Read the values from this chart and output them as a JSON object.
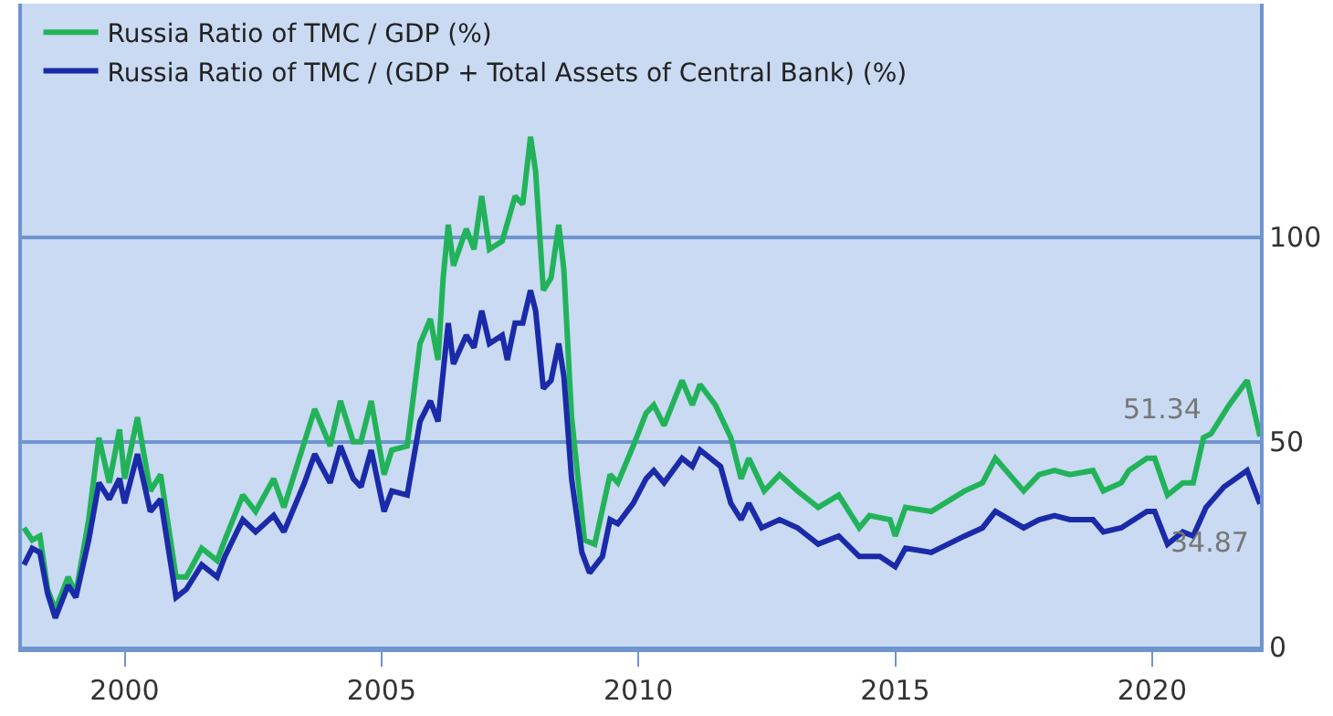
{
  "chart_data": {
    "type": "line",
    "series": [
      {
        "name": "Russia Ratio of TMC / GDP (%)",
        "color": "#22b35a",
        "x": [
          1998.04,
          1998.2,
          1998.35,
          1998.5,
          1998.65,
          1998.9,
          1999.05,
          1999.3,
          1999.5,
          1999.7,
          1999.9,
          2000.0,
          2000.25,
          2000.5,
          2000.7,
          2001.0,
          2001.2,
          2001.5,
          2001.8,
          2001.95,
          2002.3,
          2002.55,
          2002.9,
          2003.1,
          2003.5,
          2003.7,
          2004.0,
          2004.2,
          2004.45,
          2004.6,
          2004.8,
          2005.05,
          2005.2,
          2005.5,
          2005.75,
          2005.95,
          2006.1,
          2006.2,
          2006.3,
          2006.4,
          2006.65,
          2006.8,
          2006.95,
          2007.1,
          2007.35,
          2007.6,
          2007.75,
          2007.9,
          2008.0,
          2008.15,
          2008.3,
          2008.45,
          2008.55,
          2008.7,
          2008.95,
          2009.15,
          2009.45,
          2009.6,
          2009.9,
          2010.15,
          2010.3,
          2010.5,
          2010.85,
          2011.05,
          2011.2,
          2011.5,
          2011.8,
          2012.0,
          2012.15,
          2012.45,
          2012.75,
          2013.1,
          2013.5,
          2013.9,
          2014.3,
          2014.5,
          2014.9,
          2015.0,
          2015.2,
          2015.7,
          2016.35,
          2016.7,
          2016.95,
          2017.5,
          2017.8,
          2018.1,
          2018.4,
          2018.85,
          2019.05,
          2019.4,
          2019.55,
          2019.9,
          2020.05,
          2020.3,
          2020.6,
          2020.8,
          2021.0,
          2021.15,
          2021.5,
          2021.85,
          2022.1
        ],
        "values": [
          29,
          26,
          27,
          14,
          9,
          17,
          13,
          31,
          51,
          40,
          53,
          41,
          56,
          38,
          42,
          17,
          17,
          24,
          21,
          26,
          37,
          33,
          41,
          34,
          50,
          58,
          49,
          60,
          50,
          50,
          60,
          42,
          48,
          49,
          74,
          80,
          70,
          90,
          103,
          93,
          102,
          97,
          110,
          97,
          99,
          110,
          108,
          124.5,
          116,
          87,
          90,
          103,
          92,
          56,
          26,
          25,
          42,
          40,
          49,
          57,
          59,
          54,
          65,
          59,
          64,
          59,
          51,
          41,
          46,
          38,
          42,
          38,
          34,
          37,
          29,
          32,
          31,
          27,
          34,
          33,
          38,
          40,
          46,
          38,
          42,
          43,
          42,
          43,
          38,
          40,
          43,
          46,
          46,
          37,
          40,
          40,
          51,
          52,
          59,
          65,
          51.34
        ]
      },
      {
        "name": "Russia Ratio of TMC / (GDP + Total Assets of Central Bank) (%)",
        "color": "#1a2aa8",
        "x": [
          1998.04,
          1998.2,
          1998.35,
          1998.5,
          1998.65,
          1998.9,
          1999.05,
          1999.3,
          1999.5,
          1999.7,
          1999.9,
          2000.0,
          2000.25,
          2000.5,
          2000.7,
          2001.0,
          2001.2,
          2001.5,
          2001.8,
          2001.95,
          2002.3,
          2002.55,
          2002.9,
          2003.1,
          2003.5,
          2003.7,
          2004.0,
          2004.2,
          2004.45,
          2004.6,
          2004.8,
          2005.05,
          2005.2,
          2005.5,
          2005.75,
          2005.95,
          2006.1,
          2006.3,
          2006.4,
          2006.65,
          2006.8,
          2006.95,
          2007.1,
          2007.35,
          2007.45,
          2007.6,
          2007.75,
          2007.9,
          2008.0,
          2008.15,
          2008.3,
          2008.45,
          2008.55,
          2008.7,
          2008.9,
          2009.05,
          2009.3,
          2009.45,
          2009.6,
          2009.9,
          2010.15,
          2010.3,
          2010.5,
          2010.85,
          2011.05,
          2011.2,
          2011.6,
          2011.8,
          2012.0,
          2012.15,
          2012.4,
          2012.75,
          2013.1,
          2013.5,
          2013.9,
          2014.3,
          2014.7,
          2015.0,
          2015.2,
          2015.7,
          2016.35,
          2016.7,
          2016.95,
          2017.5,
          2017.8,
          2018.1,
          2018.4,
          2018.85,
          2019.05,
          2019.4,
          2019.9,
          2020.05,
          2020.3,
          2020.6,
          2020.8,
          2021.05,
          2021.4,
          2021.85,
          2022.1
        ],
        "values": [
          20,
          24,
          23,
          13,
          7,
          15,
          12,
          26,
          40,
          36,
          41,
          35,
          47,
          33,
          36,
          12,
          14,
          20,
          17,
          22,
          31,
          28,
          32,
          28,
          40,
          47,
          40,
          49,
          41,
          39,
          48,
          33,
          38,
          37,
          55,
          60,
          55,
          79,
          69,
          76,
          73,
          82,
          74,
          76,
          70,
          79,
          79,
          87,
          82,
          63,
          65,
          74,
          66,
          41,
          23,
          18,
          22,
          31,
          30,
          35,
          41,
          43,
          40,
          46,
          44,
          48,
          44,
          35,
          31,
          35,
          29,
          31,
          29,
          25,
          27,
          22,
          22,
          19.5,
          24,
          23,
          27,
          29,
          33,
          29,
          31,
          32,
          31,
          31,
          28,
          29,
          33,
          33,
          25,
          28,
          27,
          34,
          39,
          43,
          34.87
        ]
      }
    ],
    "annotations": [
      {
        "text": "51.34",
        "x": 2022.1,
        "y": 51.34
      },
      {
        "text": "34.87",
        "x": 2022.1,
        "y": 34.87
      }
    ],
    "xlim": [
      1998.0,
      2022.1
    ],
    "xticks": [
      2000,
      2005,
      2010,
      2015,
      2020
    ],
    "ylim": [
      0,
      157
    ],
    "yticks": [
      0,
      50,
      100
    ],
    "grid": "y",
    "legend": "top left",
    "marker": "none",
    "line_style": "solid"
  }
}
